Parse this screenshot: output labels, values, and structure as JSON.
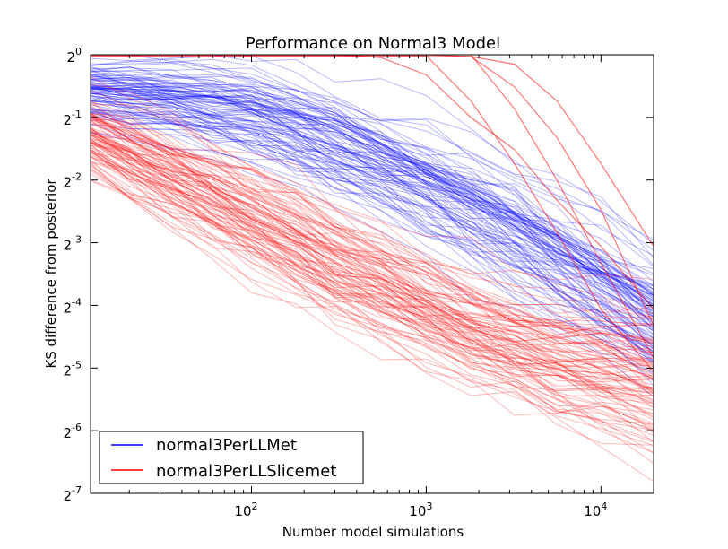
{
  "chart_data": {
    "type": "line",
    "title": "Performance on Normal3 Model",
    "xlabel": "Number model simulations",
    "ylabel": "KS difference from posterior",
    "x_scale": "log10",
    "y_scale": "log2",
    "xlim": [
      12,
      20000
    ],
    "ylim": [
      0.0078125,
      1
    ],
    "x_ticks": [
      {
        "value": 100,
        "base": "10",
        "exp": "2"
      },
      {
        "value": 1000,
        "base": "10",
        "exp": "3"
      },
      {
        "value": 10000,
        "base": "10",
        "exp": "4"
      }
    ],
    "y_ticks": [
      {
        "value": 1,
        "base": "2",
        "exp": "0"
      },
      {
        "value": 0.5,
        "base": "2",
        "exp": "-1"
      },
      {
        "value": 0.25,
        "base": "2",
        "exp": "-2"
      },
      {
        "value": 0.125,
        "base": "2",
        "exp": "-3"
      },
      {
        "value": 0.0625,
        "base": "2",
        "exp": "-4"
      },
      {
        "value": 0.03125,
        "base": "2",
        "exp": "-5"
      },
      {
        "value": 0.015625,
        "base": "2",
        "exp": "-6"
      },
      {
        "value": 0.0078125,
        "base": "2",
        "exp": "-7"
      }
    ],
    "grid": false,
    "legend_position": "bottom-left",
    "x": [
      12,
      20,
      35,
      60,
      100,
      180,
      300,
      550,
      1000,
      1800,
      3200,
      5600,
      10000,
      20000
    ],
    "series": [
      {
        "name": "normal3PerLLMet",
        "color": "#0000ff",
        "runs_shown": 100,
        "median_values": [
          0.68,
          0.65,
          0.62,
          0.57,
          0.52,
          0.44,
          0.37,
          0.3,
          0.24,
          0.185,
          0.14,
          0.105,
          0.08,
          0.055
        ],
        "high_values": [
          0.98,
          0.95,
          0.92,
          0.88,
          0.8,
          0.72,
          0.62,
          0.52,
          0.43,
          0.34,
          0.26,
          0.2,
          0.15,
          0.11
        ],
        "low_values": [
          0.45,
          0.42,
          0.38,
          0.34,
          0.3,
          0.25,
          0.2,
          0.16,
          0.12,
          0.09,
          0.07,
          0.05,
          0.038,
          0.028
        ]
      },
      {
        "name": "normal3PerLLSlicemet",
        "color": "#ff0000",
        "runs_shown": 100,
        "median_values": [
          0.42,
          0.34,
          0.27,
          0.215,
          0.17,
          0.13,
          0.1,
          0.078,
          0.062,
          0.05,
          0.042,
          0.036,
          0.032,
          0.028
        ],
        "high_values": [
          0.62,
          0.52,
          0.43,
          0.35,
          0.29,
          0.23,
          0.18,
          0.14,
          0.11,
          0.09,
          0.075,
          0.065,
          0.056,
          0.05
        ],
        "low_values": [
          0.26,
          0.2,
          0.16,
          0.125,
          0.095,
          0.072,
          0.055,
          0.042,
          0.034,
          0.028,
          0.022,
          0.017,
          0.013,
          0.01
        ],
        "stuck_runs": [
          {
            "values": [
              1,
              1,
              1,
              1,
              1,
              1,
              1,
              1,
              1,
              1,
              0.55,
              0.25,
              0.1,
              0.035
            ]
          },
          {
            "values": [
              1,
              1,
              1,
              1,
              1,
              1,
              1,
              1,
              1,
              0.98,
              0.7,
              0.4,
              0.18,
              0.05
            ]
          },
          {
            "values": [
              0.99,
              0.99,
              0.99,
              0.99,
              0.99,
              0.99,
              0.99,
              0.99,
              0.99,
              0.6,
              0.3,
              0.14,
              0.06,
              0.03
            ]
          },
          {
            "values": [
              1,
              1,
              1,
              1,
              1,
              1,
              1,
              0.97,
              0.8,
              0.5,
              0.35,
              0.2,
              0.12,
              0.06
            ]
          },
          {
            "values": [
              0.98,
              0.98,
              0.98,
              0.98,
              0.98,
              0.98,
              0.98,
              0.98,
              0.98,
              0.98,
              0.9,
              0.6,
              0.3,
              0.12
            ]
          }
        ]
      }
    ]
  }
}
